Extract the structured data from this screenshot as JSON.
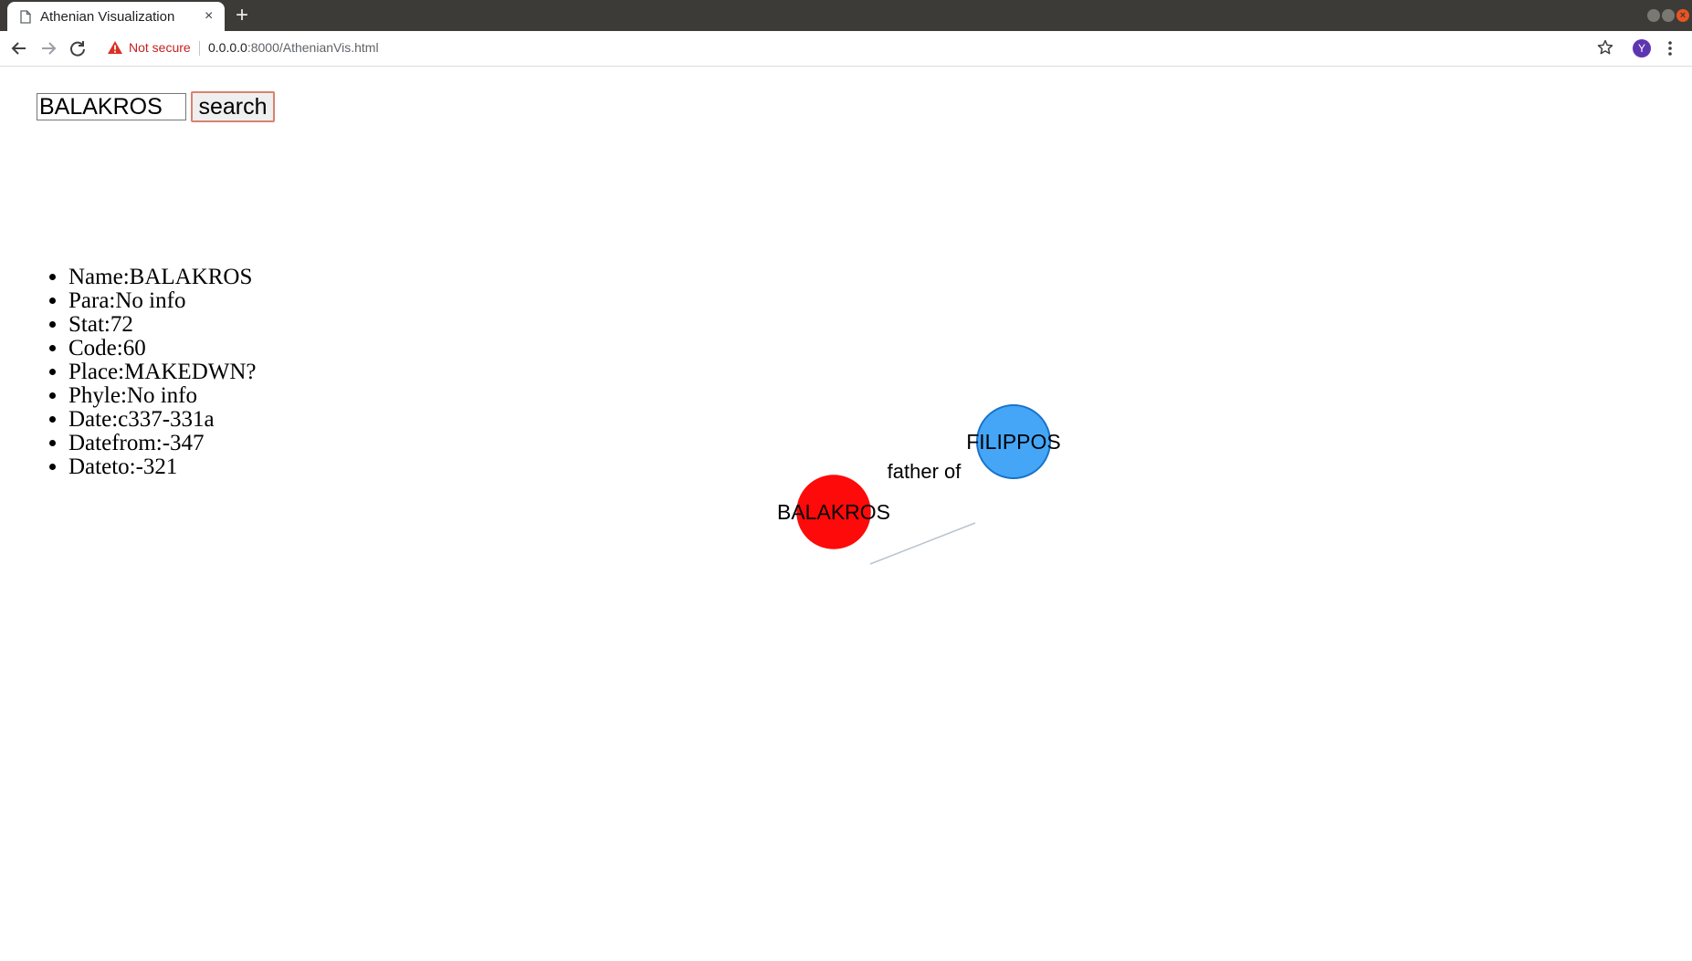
{
  "browser": {
    "tab_title": "Athenian Visualization",
    "new_tab_label": "+",
    "close_tab_label": "×",
    "security_label": "Not secure",
    "url_host": "0.0.0.0",
    "url_rest": ":8000/AthenianVis.html",
    "profile_initial": "Y"
  },
  "search": {
    "value": "BALAKROS",
    "button_label": "search"
  },
  "info": {
    "items": [
      "Name:BALAKROS",
      "Para:No info",
      "Stat:72",
      "Code:60",
      "Place:MAKEDWN?",
      "Phyle:No info",
      "Date:c337-331a",
      "Datefrom:-347",
      "Dateto:-321"
    ]
  },
  "graph": {
    "nodes": [
      {
        "id": "balakros",
        "label": "BALAKROS",
        "color": "#ff0a0a",
        "stroke": "#ff0a0a"
      },
      {
        "id": "filippos",
        "label": "FILIPPOS",
        "color": "#45a6f7",
        "stroke": "#1a73c9"
      }
    ],
    "edge": {
      "label": "father of",
      "color": "#b9c4cf"
    }
  }
}
